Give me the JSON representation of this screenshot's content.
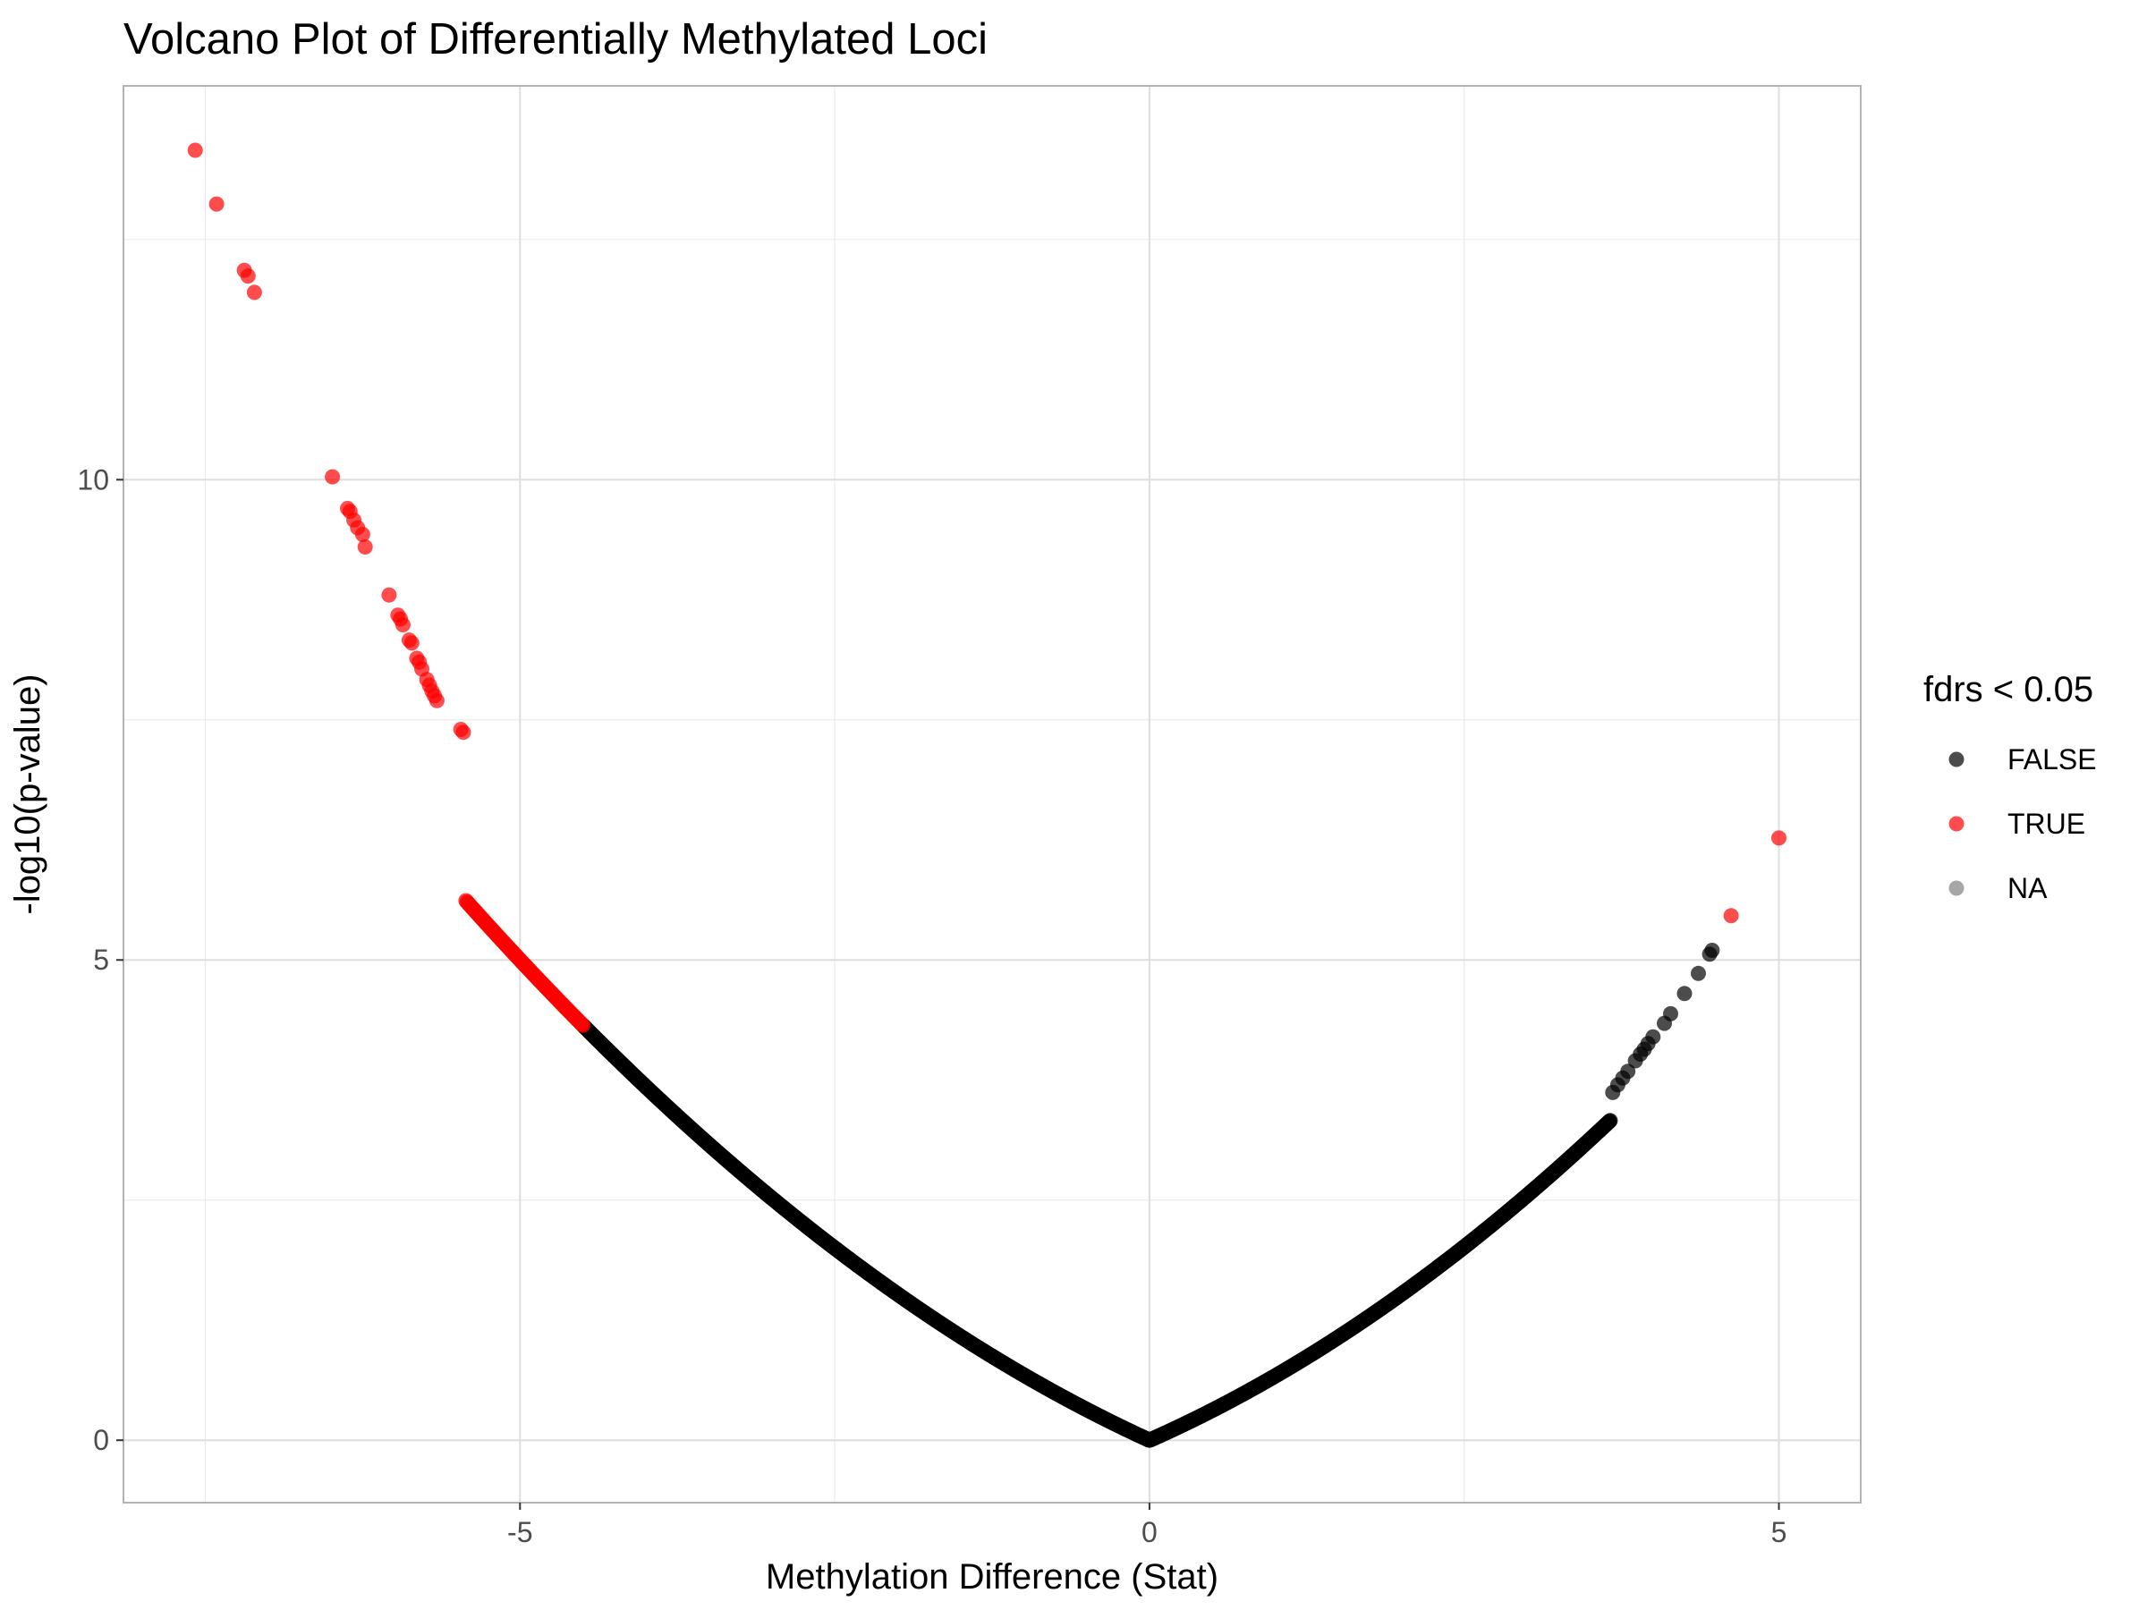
{
  "chart_data": {
    "type": "scatter",
    "title": "Volcano Plot of Differentially Methylated Loci",
    "xlabel": "Methylation Difference (Stat)",
    "ylabel": "-log10(p-value)",
    "xlim": [
      -8.15,
      5.65
    ],
    "ylim": [
      -0.65,
      14.1
    ],
    "x_ticks": [
      -5,
      0,
      5
    ],
    "x_tick_labels": [
      "-5",
      "0",
      "5"
    ],
    "y_ticks": [
      0,
      5,
      10
    ],
    "y_tick_labels": [
      "0",
      "5",
      "10"
    ],
    "grid": true,
    "legend": {
      "title": "fdrs < 0.05",
      "placement": "right",
      "entries": [
        {
          "label": "FALSE",
          "color": "#000000"
        },
        {
          "label": "TRUE",
          "color": "#ff0000"
        },
        {
          "label": "NA",
          "color": "#808080"
        }
      ]
    },
    "series": [
      {
        "name": "TRUE",
        "color": "#ff0000",
        "points": [
          [
            -7.58,
            13.43
          ],
          [
            -7.41,
            12.87
          ],
          [
            -7.19,
            12.18
          ],
          [
            -7.16,
            12.12
          ],
          [
            -7.11,
            11.95
          ],
          [
            -6.49,
            10.03
          ],
          [
            -6.37,
            9.7
          ],
          [
            -6.35,
            9.67
          ],
          [
            -6.32,
            9.58
          ],
          [
            -6.29,
            9.5
          ],
          [
            -6.25,
            9.43
          ],
          [
            -6.23,
            9.3
          ],
          [
            -6.04,
            8.8
          ],
          [
            -5.97,
            8.59
          ],
          [
            -5.95,
            8.55
          ],
          [
            -5.93,
            8.49
          ],
          [
            -5.88,
            8.33
          ],
          [
            -5.86,
            8.3
          ],
          [
            -5.82,
            8.14
          ],
          [
            -5.8,
            8.1
          ],
          [
            -5.78,
            8.03
          ],
          [
            -5.74,
            7.92
          ],
          [
            -5.72,
            7.86
          ],
          [
            -5.7,
            7.8
          ],
          [
            -5.68,
            7.75
          ],
          [
            -5.66,
            7.7
          ],
          [
            -5.47,
            7.4
          ],
          [
            -5.45,
            7.37
          ]
        ],
        "band": {
          "x_from": -5.43,
          "x_to": -4.5,
          "count": 120
        }
      },
      {
        "name": "FALSE",
        "color": "#000000",
        "points": [
          [
            4.47,
            5.1
          ],
          [
            4.45,
            5.06
          ],
          [
            4.36,
            4.86
          ],
          [
            4.25,
            4.65
          ],
          [
            4.14,
            4.44
          ],
          [
            4.09,
            4.34
          ],
          [
            4.0,
            4.2
          ],
          [
            3.96,
            4.13
          ],
          [
            3.93,
            4.07
          ],
          [
            3.9,
            4.02
          ],
          [
            3.86,
            3.95
          ],
          [
            3.8,
            3.84
          ],
          [
            3.76,
            3.77
          ],
          [
            3.72,
            3.7
          ],
          [
            3.68,
            3.62
          ]
        ],
        "curve": {
          "x_from": -4.5,
          "x_to": 3.66,
          "count": 1800
        }
      }
    ],
    "extra_true_points": [
      [
        5.0,
        6.27
      ],
      [
        4.62,
        5.46
      ]
    ]
  }
}
